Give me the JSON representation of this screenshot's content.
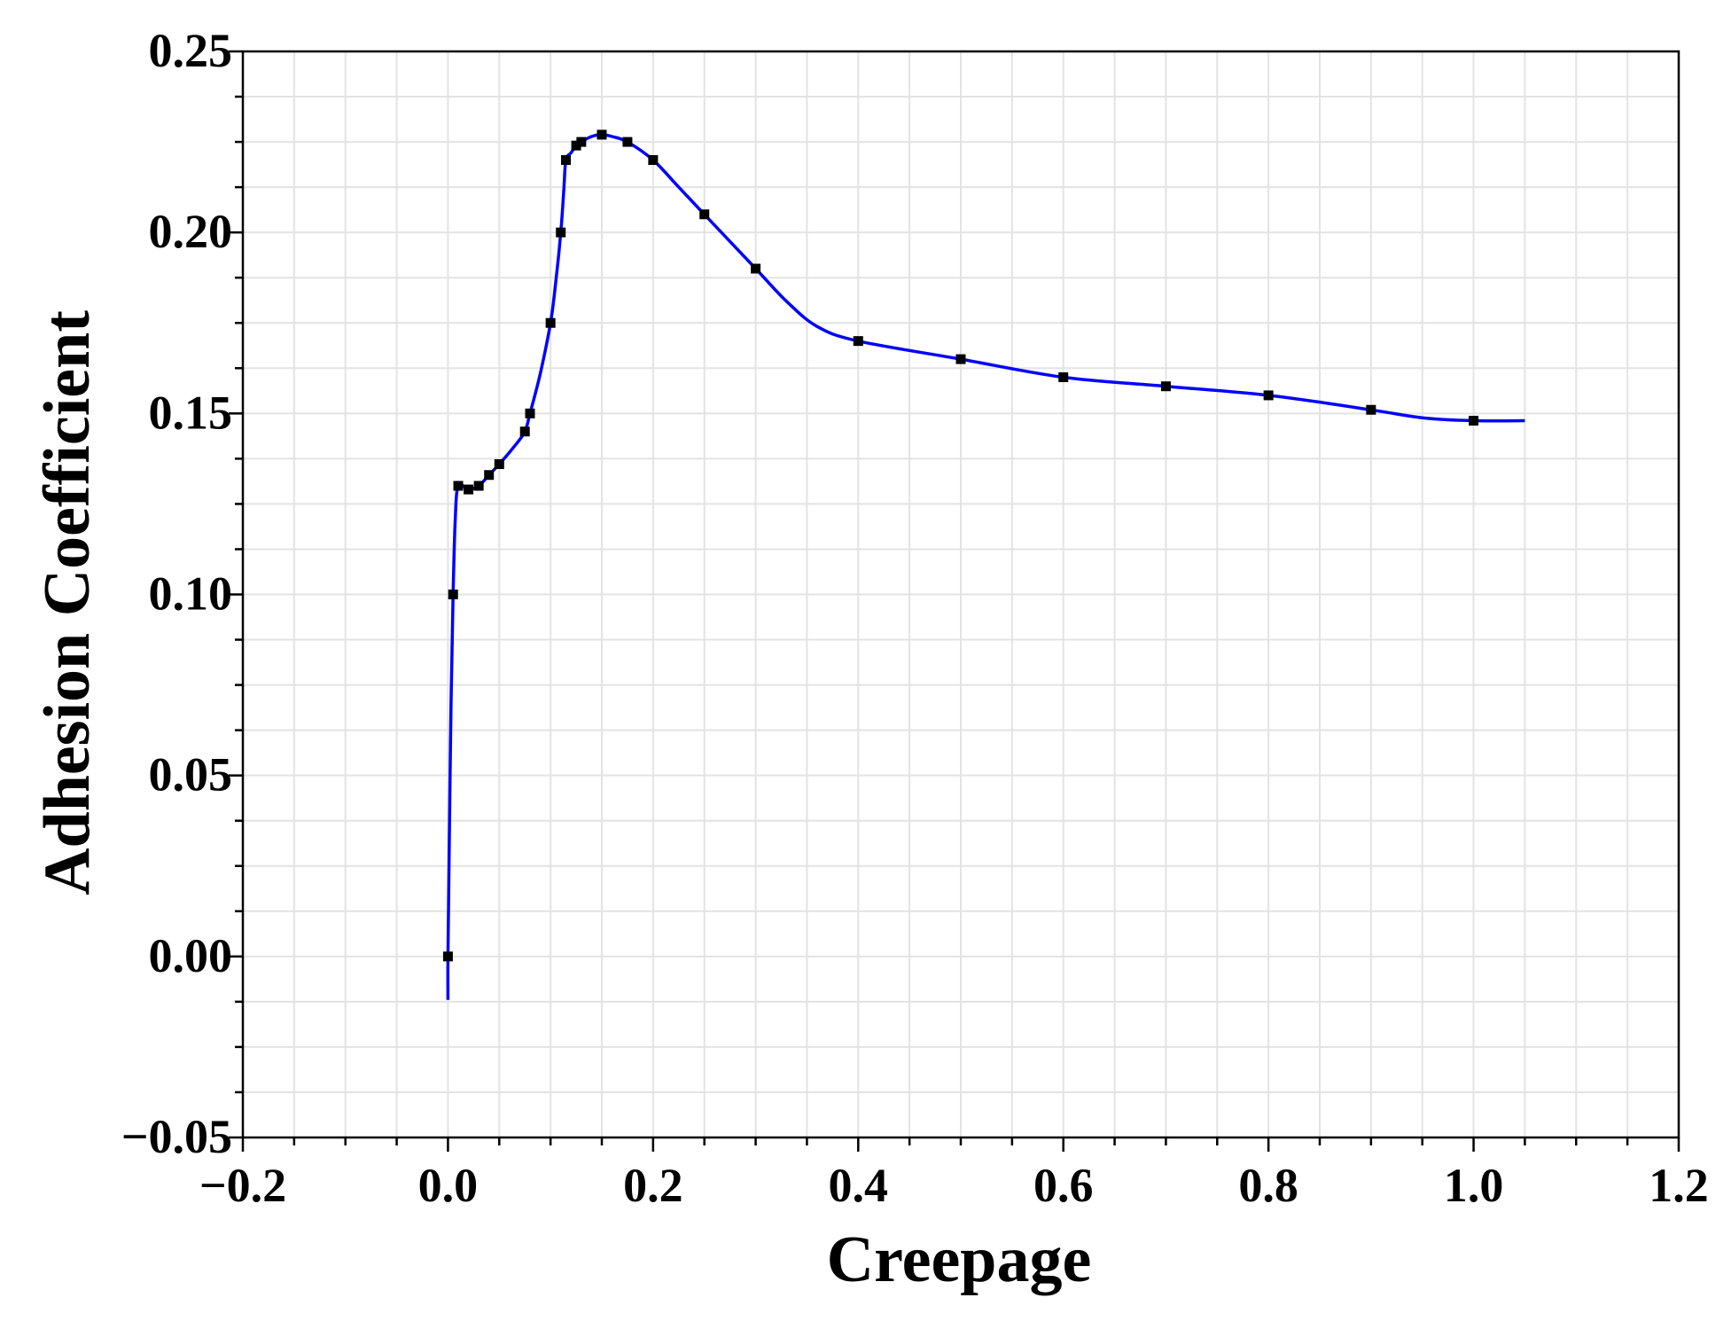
{
  "chart_data": {
    "type": "line",
    "title": "",
    "xlabel": "Creepage",
    "ylabel": "Adhesion Coefficient",
    "xlim": [
      -0.2,
      1.2
    ],
    "ylim": [
      -0.05,
      0.25
    ],
    "x_ticks": [
      "−0.2",
      "0.0",
      "0.2",
      "0.4",
      "0.6",
      "0.8",
      "1.0",
      "1.2"
    ],
    "y_ticks": [
      "−0.05",
      "0.00",
      "0.05",
      "0.10",
      "0.15",
      "0.20",
      "0.25"
    ],
    "grid": true,
    "line_color": "#0000ff",
    "marker_color": "#000000",
    "markers": [
      [
        0.0,
        0.0
      ],
      [
        0.005,
        0.1
      ],
      [
        0.01,
        0.13
      ],
      [
        0.02,
        0.129
      ],
      [
        0.03,
        0.13
      ],
      [
        0.04,
        0.133
      ],
      [
        0.05,
        0.136
      ],
      [
        0.075,
        0.145
      ],
      [
        0.08,
        0.15
      ],
      [
        0.1,
        0.175
      ],
      [
        0.11,
        0.2
      ],
      [
        0.115,
        0.22
      ],
      [
        0.125,
        0.224
      ],
      [
        0.13,
        0.225
      ],
      [
        0.15,
        0.227
      ],
      [
        0.175,
        0.225
      ],
      [
        0.2,
        0.22
      ],
      [
        0.25,
        0.205
      ],
      [
        0.3,
        0.19
      ],
      [
        0.4,
        0.17
      ],
      [
        0.5,
        0.165
      ],
      [
        0.6,
        0.16
      ],
      [
        0.7,
        0.1575
      ],
      [
        0.8,
        0.155
      ],
      [
        0.9,
        0.151
      ],
      [
        1.0,
        0.148
      ]
    ],
    "curve": [
      [
        0.0,
        -0.012
      ],
      [
        0.0,
        0.0
      ],
      [
        0.001,
        0.025
      ],
      [
        0.003,
        0.07
      ],
      [
        0.005,
        0.1
      ],
      [
        0.007,
        0.12
      ],
      [
        0.01,
        0.13
      ],
      [
        0.02,
        0.129
      ],
      [
        0.03,
        0.13
      ],
      [
        0.04,
        0.133
      ],
      [
        0.05,
        0.136
      ],
      [
        0.065,
        0.141
      ],
      [
        0.075,
        0.145
      ],
      [
        0.08,
        0.15
      ],
      [
        0.09,
        0.161
      ],
      [
        0.1,
        0.175
      ],
      [
        0.105,
        0.186
      ],
      [
        0.11,
        0.2
      ],
      [
        0.113,
        0.212
      ],
      [
        0.115,
        0.22
      ],
      [
        0.12,
        0.222
      ],
      [
        0.125,
        0.224
      ],
      [
        0.13,
        0.225
      ],
      [
        0.14,
        0.2265
      ],
      [
        0.15,
        0.227
      ],
      [
        0.16,
        0.2265
      ],
      [
        0.175,
        0.225
      ],
      [
        0.2,
        0.22
      ],
      [
        0.225,
        0.2125
      ],
      [
        0.25,
        0.205
      ],
      [
        0.3,
        0.19
      ],
      [
        0.33,
        0.181
      ],
      [
        0.36,
        0.174
      ],
      [
        0.4,
        0.17
      ],
      [
        0.5,
        0.165
      ],
      [
        0.6,
        0.16
      ],
      [
        0.7,
        0.1575
      ],
      [
        0.8,
        0.155
      ],
      [
        0.9,
        0.151
      ],
      [
        0.95,
        0.1488
      ],
      [
        1.0,
        0.148
      ],
      [
        1.05,
        0.148
      ]
    ]
  }
}
